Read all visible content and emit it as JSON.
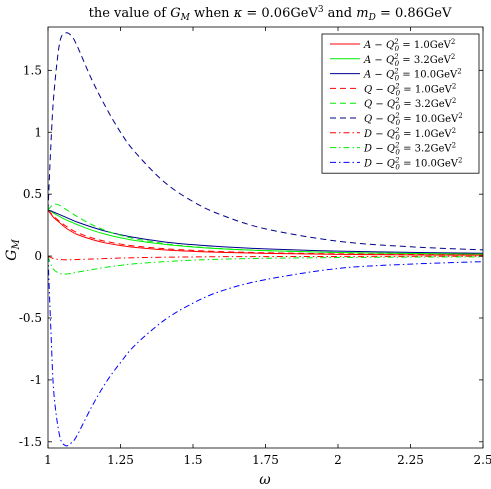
{
  "chart_data": {
    "type": "line",
    "title": "the value of G_M when κ = 0.06GeV³ and m_D = 0.86GeV",
    "title_parts": {
      "prefix": "the value of ",
      "gm_main": "G",
      "gm_sub": "M",
      "middle": " when ",
      "kappa": "κ",
      "kappa_val": " = 0.06GeV",
      "kappa_exp": "3",
      "and": " and ",
      "md_main": "m",
      "md_sub": "D",
      "md_val": " = 0.86GeV"
    },
    "xlabel": "ω",
    "ylabel_main": "G",
    "ylabel_sub": "M",
    "xlim": [
      1,
      2.5
    ],
    "ylim": [
      -1.55,
      1.85
    ],
    "xticks": [
      1,
      1.25,
      1.5,
      1.75,
      2,
      2.25,
      2.5
    ],
    "xtick_labels": [
      "1",
      "1.25",
      "1.5",
      "1.75",
      "2",
      "2.25",
      "2.5"
    ],
    "yticks": [
      -1.5,
      -1,
      -0.5,
      0,
      0.5,
      1,
      1.5
    ],
    "ytick_labels": [
      "-1.5",
      "-1",
      "-0.5",
      "0",
      "0.5",
      "1",
      "1.5"
    ],
    "grid": false,
    "legend_position": "top-right",
    "x": [
      1.0,
      1.01,
      1.02,
      1.04,
      1.06,
      1.08,
      1.1,
      1.15,
      1.2,
      1.25,
      1.3,
      1.4,
      1.5,
      1.6,
      1.75,
      2.0,
      2.25,
      2.5
    ],
    "series": [
      {
        "name": "A − Q0² = 1.0GeV²",
        "label_prefix": "A − Q",
        "label_exp": "2",
        "label_sub": "0",
        "label_value": " = 1.0GeV",
        "label_value_exp": "2",
        "color": "#ff0000",
        "dash": "solid",
        "values": [
          0.37,
          0.34,
          0.31,
          0.27,
          0.23,
          0.2,
          0.175,
          0.135,
          0.105,
          0.085,
          0.07,
          0.05,
          0.038,
          0.03,
          0.022,
          0.014,
          0.01,
          0.008
        ]
      },
      {
        "name": "A − Q0² = 3.2GeV²",
        "label_prefix": "A − Q",
        "label_exp": "2",
        "label_sub": "0",
        "label_value": " = 3.2GeV",
        "label_value_exp": "2",
        "color": "#00ee00",
        "dash": "solid",
        "values": [
          0.37,
          0.36,
          0.345,
          0.32,
          0.295,
          0.275,
          0.255,
          0.21,
          0.175,
          0.148,
          0.126,
          0.095,
          0.073,
          0.058,
          0.044,
          0.029,
          0.021,
          0.016
        ]
      },
      {
        "name": "A − Q0² = 10.0GeV²",
        "label_prefix": "A − Q",
        "label_exp": "2",
        "label_sub": "0",
        "label_value": " = 10.0GeV",
        "label_value_exp": "2",
        "color": "#00008b",
        "dash": "solid",
        "values": [
          0.37,
          0.365,
          0.355,
          0.335,
          0.315,
          0.295,
          0.275,
          0.235,
          0.2,
          0.172,
          0.15,
          0.115,
          0.092,
          0.075,
          0.058,
          0.04,
          0.03,
          0.023
        ]
      },
      {
        "name": "Q − Q0² = 1.0GeV²",
        "label_prefix": "Q − Q",
        "label_exp": "2",
        "label_sub": "0",
        "label_value": " = 1.0GeV",
        "label_value_exp": "2",
        "color": "#ff0000",
        "dash": "dashed",
        "values": [
          0.37,
          0.345,
          0.32,
          0.28,
          0.245,
          0.215,
          0.19,
          0.148,
          0.118,
          0.097,
          0.081,
          0.06,
          0.046,
          0.036,
          0.027,
          0.018,
          0.013,
          0.01
        ]
      },
      {
        "name": "Q − Q0² = 3.2GeV²",
        "label_prefix": "Q − Q",
        "label_exp": "2",
        "label_sub": "0",
        "label_value": " = 3.2GeV",
        "label_value_exp": "2",
        "color": "#00ee00",
        "dash": "dashed",
        "values": [
          0.37,
          0.4,
          0.42,
          0.41,
          0.38,
          0.35,
          0.32,
          0.255,
          0.205,
          0.168,
          0.14,
          0.101,
          0.076,
          0.06,
          0.044,
          0.029,
          0.021,
          0.016
        ]
      },
      {
        "name": "Q − Q0² = 10.0GeV²",
        "label_prefix": "Q − Q",
        "label_exp": "2",
        "label_sub": "0",
        "label_value": " = 10.0GeV",
        "label_value_exp": "2",
        "color": "#00008b",
        "dash": "dashed",
        "values": [
          0.37,
          0.9,
          1.3,
          1.72,
          1.8,
          1.78,
          1.7,
          1.43,
          1.2,
          1.0,
          0.84,
          0.6,
          0.44,
          0.33,
          0.22,
          0.12,
          0.075,
          0.05
        ]
      },
      {
        "name": "D − Q0² = 1.0GeV²",
        "label_prefix": "D − Q",
        "label_exp": "2",
        "label_sub": "0",
        "label_value": " = 1.0GeV",
        "label_value_exp": "2",
        "color": "#ff0000",
        "dash": "dashdot",
        "values": [
          0.0,
          -0.012,
          -0.02,
          -0.028,
          -0.03,
          -0.03,
          -0.028,
          -0.024,
          -0.02,
          -0.016,
          -0.013,
          -0.009,
          -0.007,
          -0.005,
          -0.004,
          -0.003,
          -0.002,
          -0.001
        ]
      },
      {
        "name": "D − Q0² = 3.2GeV²",
        "label_prefix": "D − Q",
        "label_exp": "2",
        "label_sub": "0",
        "label_value": " = 3.2GeV",
        "label_value_exp": "2",
        "color": "#00ee00",
        "dash": "dashdot",
        "values": [
          0.0,
          -0.07,
          -0.11,
          -0.14,
          -0.145,
          -0.14,
          -0.13,
          -0.11,
          -0.09,
          -0.075,
          -0.062,
          -0.045,
          -0.033,
          -0.025,
          -0.018,
          -0.012,
          -0.008,
          -0.006
        ]
      },
      {
        "name": "D − Q0² = 10.0GeV²",
        "label_prefix": "D − Q",
        "label_exp": "2",
        "label_sub": "0",
        "label_value": " = 10.0GeV",
        "label_value_exp": "2",
        "color": "#0000ff",
        "dash": "dashdot",
        "values": [
          0.0,
          -0.6,
          -1.1,
          -1.45,
          -1.53,
          -1.51,
          -1.45,
          -1.22,
          -1.02,
          -0.86,
          -0.72,
          -0.52,
          -0.38,
          -0.28,
          -0.19,
          -0.1,
          -0.065,
          -0.045
        ]
      }
    ]
  }
}
